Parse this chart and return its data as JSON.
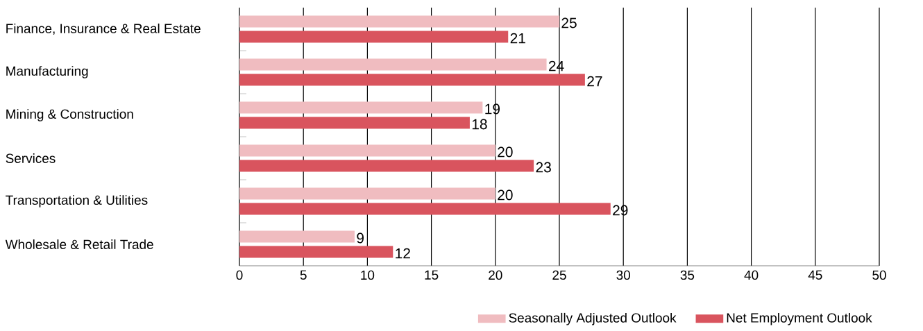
{
  "chart_data": {
    "type": "bar",
    "orientation": "horizontal",
    "categories": [
      "Finance, Insurance & Real Estate",
      "Manufacturing",
      "Mining & Construction",
      "Services",
      "Transportation & Utilities",
      "Wholesale & Retail Trade"
    ],
    "series": [
      {
        "name": "Seasonally Adjusted Outlook",
        "color": "#f0bcc0",
        "values": [
          25,
          24,
          19,
          20,
          20,
          9
        ]
      },
      {
        "name": "Net Employment Outlook",
        "color": "#d9545e",
        "values": [
          21,
          27,
          18,
          23,
          29,
          12
        ]
      }
    ],
    "xlim": [
      0,
      50
    ],
    "xticks": [
      0,
      5,
      10,
      15,
      20,
      25,
      30,
      35,
      40,
      45,
      50
    ],
    "grid": "x",
    "legend": "bottom right",
    "data_labels": true
  }
}
